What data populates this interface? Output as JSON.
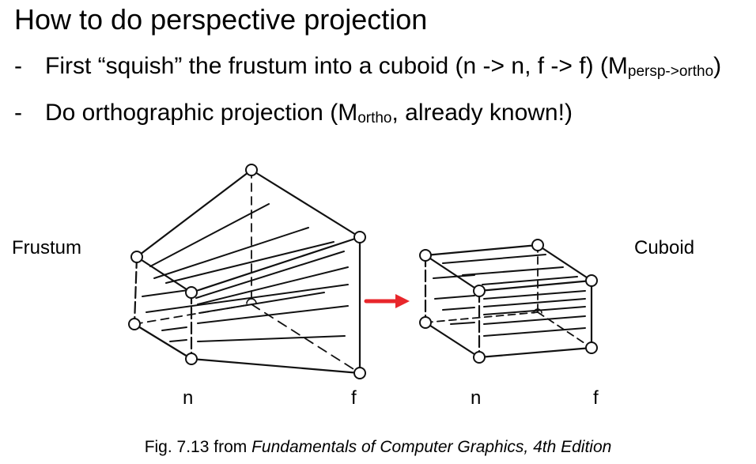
{
  "title": "How to do perspective projection",
  "bullets": [
    {
      "dash": "-",
      "pre": "First “squish” the frustum into a cuboid (n -> n, f -> f) (M",
      "sub": "persp->ortho",
      "post": ")"
    },
    {
      "dash": "-",
      "pre": "Do orthographic projection (M",
      "sub": "ortho",
      "post": ", already known!)"
    }
  ],
  "figure": {
    "frustum_label": "Frustum",
    "cuboid_label": "Cuboid",
    "frustum_near_label": "n",
    "frustum_far_label": "f",
    "cuboid_near_label": "n",
    "cuboid_far_label": "f",
    "arrow_color": "#e8262b"
  },
  "caption": {
    "prefix": "Fig. 7.13 from ",
    "book": "Fundamentals of Computer Graphics, 4th Edition"
  }
}
